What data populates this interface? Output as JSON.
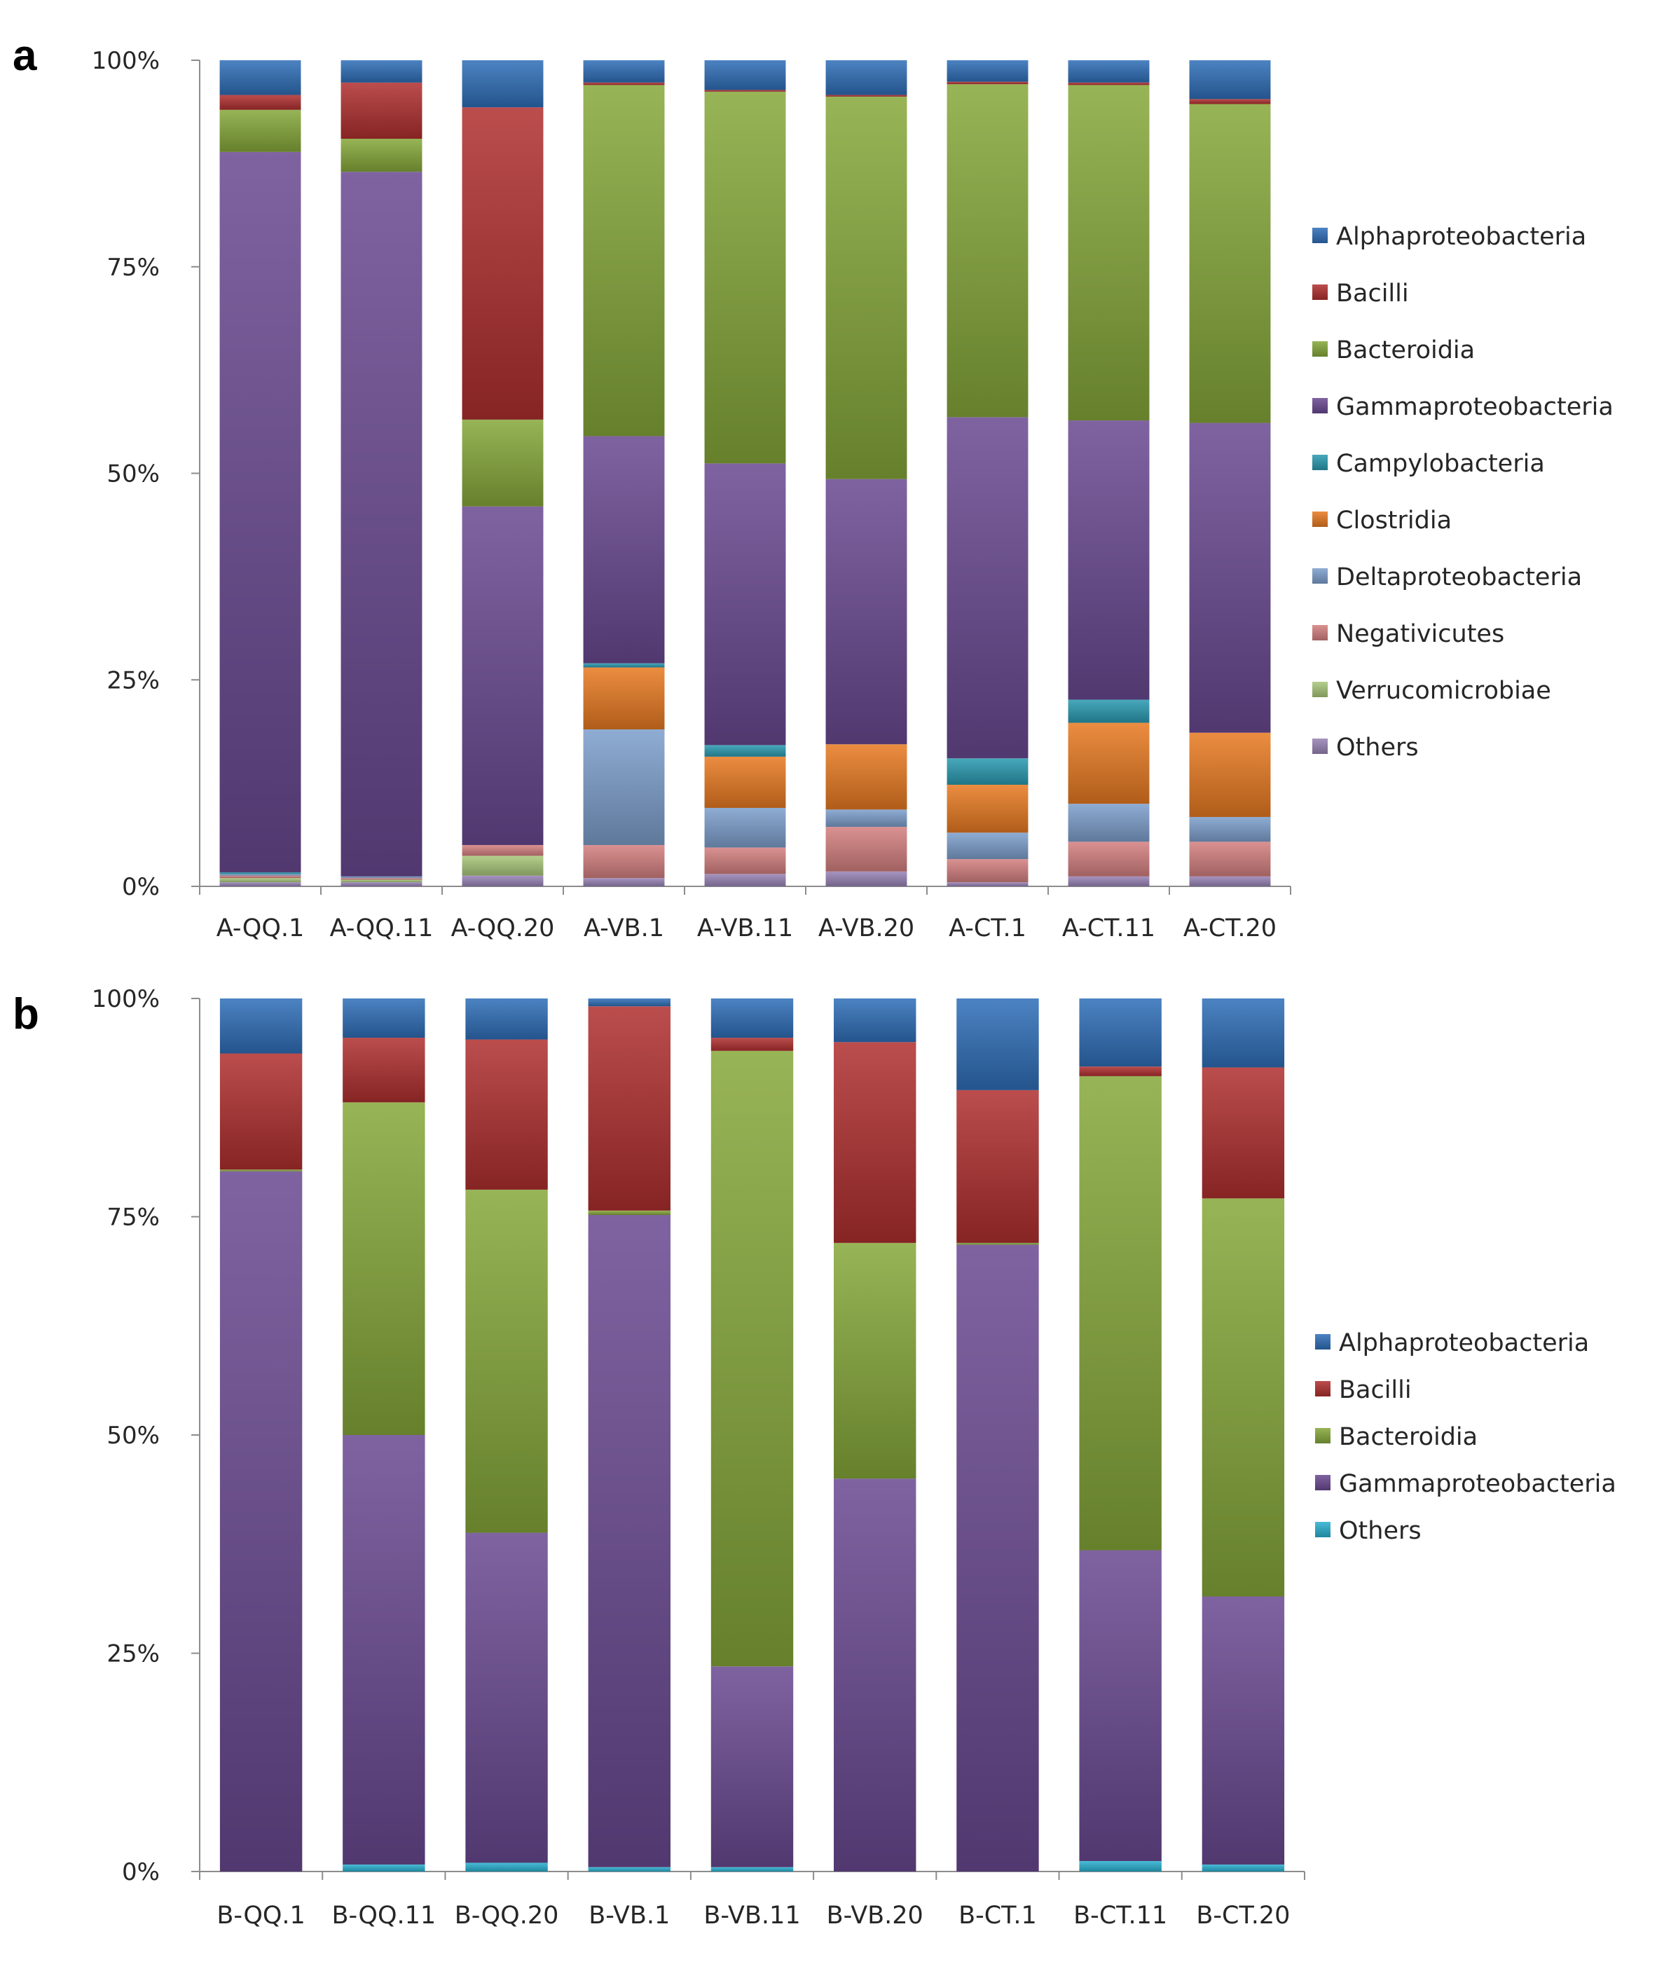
{
  "colors": {
    "Alphaproteobacteria": "#2f6fb8",
    "Bacilli": "#b03030",
    "Bacteroidia": "#86a83a",
    "Gammaproteobacteria": "#6a4a92",
    "Campylobacteria": "#2a9ab0",
    "Clostridia": "#e87a22",
    "Deltaproteobacteria": "#7d9fcc",
    "Negativicutes": "#d47f7f",
    "Verrucomicrobiae": "#a9c77a",
    "Others": "#9883b6",
    "OthersB": "#2ab0d0"
  },
  "chart_data": [
    {
      "type": "bar",
      "stacked": "percent",
      "panel": "a",
      "title": "",
      "ylim": [
        0,
        100
      ],
      "yticks": [
        "0%",
        "25%",
        "50%",
        "75%",
        "100%"
      ],
      "legend": "right",
      "categories": [
        "A-QQ.1",
        "A-QQ.11",
        "A-QQ.20",
        "A-VB.1",
        "A-VB.11",
        "A-VB.20",
        "A-CT.1",
        "A-CT.11",
        "A-CT.20"
      ],
      "series": [
        {
          "name": "Others",
          "color_key": "Others",
          "values": [
            0.5,
            0.5,
            1.3,
            1,
            1.5,
            1.8,
            0.5,
            1.2,
            1.2
          ]
        },
        {
          "name": "Verrucomicrobiae",
          "color_key": "Verrucomicrobiae",
          "values": [
            0.5,
            0.3,
            2.4,
            0,
            0,
            0,
            0,
            0,
            0
          ]
        },
        {
          "name": "Negativicutes",
          "color_key": "Negativicutes",
          "values": [
            0.3,
            0.2,
            1.3,
            4,
            3.2,
            5.4,
            2.8,
            4.2,
            4.2
          ]
        },
        {
          "name": "Deltaproteobacteria",
          "color_key": "Deltaproteobacteria",
          "values": [
            0.2,
            0.2,
            0,
            14,
            4.8,
            2.1,
            3.2,
            4.6,
            3
          ]
        },
        {
          "name": "Clostridia",
          "color_key": "Clostridia",
          "values": [
            0,
            0,
            0,
            7.5,
            6.2,
            7.9,
            5.8,
            9.8,
            10.2
          ]
        },
        {
          "name": "Campylobacteria",
          "color_key": "Campylobacteria",
          "values": [
            0.2,
            0,
            0,
            0.5,
            1.4,
            0,
            3.2,
            2.8,
            0
          ]
        },
        {
          "name": "Gammaproteobacteria",
          "color_key": "Gammaproteobacteria",
          "values": [
            87.2,
            85.3,
            41,
            27.5,
            34.1,
            32.1,
            41.3,
            33.8,
            37.5
          ]
        },
        {
          "name": "Bacteroidia",
          "color_key": "Bacteroidia",
          "values": [
            5.1,
            4,
            10.5,
            42.5,
            45,
            46.3,
            40.3,
            40.6,
            38.6
          ]
        },
        {
          "name": "Bacilli",
          "color_key": "Bacilli",
          "values": [
            1.8,
            6.8,
            37.8,
            0.3,
            0.2,
            0.2,
            0.3,
            0.3,
            0.6
          ]
        },
        {
          "name": "Alphaproteobacteria",
          "color_key": "Alphaproteobacteria",
          "values": [
            4.2,
            2.7,
            5.7,
            2.7,
            3.6,
            4.2,
            2.6,
            2.7,
            4.7
          ]
        }
      ],
      "legend_entries": [
        "Alphaproteobacteria",
        "Bacilli",
        "Bacteroidia",
        "Gammaproteobacteria",
        "Campylobacteria",
        "Clostridia",
        "Deltaproteobacteria",
        "Negativicutes",
        "Verrucomicrobiae",
        "Others"
      ]
    },
    {
      "type": "bar",
      "stacked": "percent",
      "panel": "b",
      "title": "",
      "ylim": [
        0,
        100
      ],
      "yticks": [
        "0%",
        "25%",
        "50%",
        "75%",
        "100%"
      ],
      "legend": "right",
      "categories": [
        "B-QQ.1",
        "B-QQ.11",
        "B-QQ.20",
        "B-VB.1",
        "B-VB.11",
        "B-VB.20",
        "B-CT.1",
        "B-CT.11",
        "B-CT.20"
      ],
      "series": [
        {
          "name": "Others",
          "color_key": "OthersB",
          "values": [
            0,
            0.8,
            1,
            0.5,
            0.5,
            0,
            0,
            1.2,
            0.8
          ]
        },
        {
          "name": "Gammaproteobacteria",
          "color_key": "Gammaproteobacteria",
          "values": [
            80.2,
            49.2,
            37.8,
            74.7,
            23,
            45,
            71.8,
            35.6,
            30.7
          ]
        },
        {
          "name": "Bacteroidia",
          "color_key": "Bacteroidia",
          "values": [
            0.2,
            38.1,
            39.3,
            0.5,
            70.5,
            27,
            0.2,
            54.3,
            45.6
          ]
        },
        {
          "name": "Bacilli",
          "color_key": "Bacilli",
          "values": [
            13.3,
            7.4,
            17.2,
            23.4,
            1.5,
            23,
            17.5,
            1.1,
            15
          ]
        },
        {
          "name": "Alphaproteobacteria",
          "color_key": "Alphaproteobacteria",
          "values": [
            6.3,
            4.5,
            4.7,
            0.9,
            4.5,
            5,
            10.5,
            7.8,
            7.9
          ]
        }
      ],
      "legend_entries": [
        "Alphaproteobacteria",
        "Bacilli",
        "Bacteroidia",
        "Gammaproteobacteria",
        "Others"
      ],
      "legend_color_keys": [
        "Alphaproteobacteria",
        "Bacilli",
        "Bacteroidia",
        "Gammaproteobacteria",
        "OthersB"
      ]
    }
  ]
}
